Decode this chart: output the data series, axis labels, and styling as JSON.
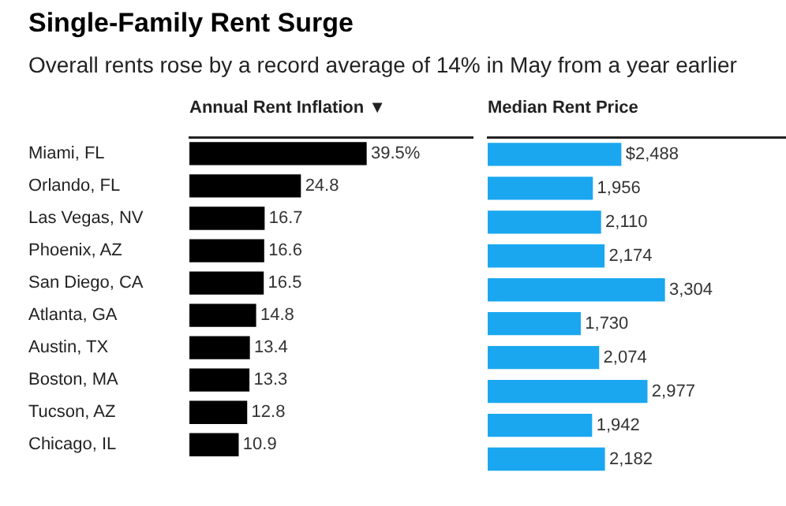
{
  "chart_data": [
    {
      "type": "bar",
      "orientation": "horizontal",
      "title": "Single-Family Rent Surge",
      "subtitle": "Overall rents rose by a record average of 14% in May from a year earlier",
      "xlabel": "Annual Rent Inflation ▼",
      "categories": [
        "Miami, FL",
        "Orlando, FL",
        "Las Vegas, NV",
        "Phoenix, AZ",
        "San Diego, CA",
        "Atlanta, GA",
        "Austin, TX",
        "Boston, MA",
        "Tucson, AZ",
        "Chicago, IL"
      ],
      "values": [
        39.5,
        24.8,
        16.7,
        16.6,
        16.5,
        14.8,
        13.4,
        13.3,
        12.8,
        10.9
      ],
      "color": "#000000",
      "value_labels": [
        "39.5%",
        "24.8",
        "16.7",
        "16.6",
        "16.5",
        "14.8",
        "13.4",
        "13.3",
        "12.8",
        "10.9"
      ],
      "grid": false,
      "legend": false
    },
    {
      "type": "bar",
      "orientation": "horizontal",
      "xlabel": "Median Rent Price",
      "categories": [
        null,
        null,
        null,
        null,
        null,
        null,
        null,
        null,
        null,
        null
      ],
      "values": [
        2488,
        1956,
        2110,
        2174,
        3304,
        1730,
        2074,
        2977,
        1942,
        2182
      ],
      "color": "#1aa7f0",
      "value_labels": [
        "$2,488",
        "1,956",
        "2,110",
        "2,174",
        "3,304",
        "1,730",
        "2,074",
        "2,977",
        "1,942",
        "2,182"
      ],
      "grid": false,
      "legend": false
    }
  ]
}
